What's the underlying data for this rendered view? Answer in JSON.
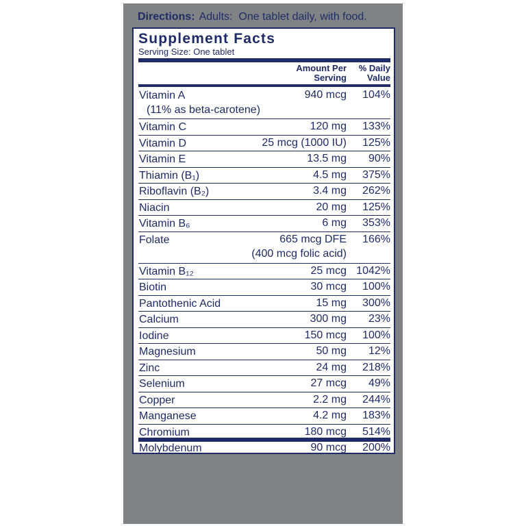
{
  "directions": {
    "label": "Directions:",
    "text": "Adults:  One tablet daily, with food."
  },
  "panel": {
    "title": "Supplement Facts",
    "serving_size": "Serving Size: One tablet",
    "header": {
      "amount": "Amount Per Serving",
      "daily_value": "% Daily Value"
    },
    "rows": [
      {
        "name": "Vitamin A",
        "note": "(11% as beta-carotene)",
        "amount": "940 mcg",
        "dv": "104%"
      },
      {
        "name": "Vitamin C",
        "amount": "120 mg",
        "dv": "133%"
      },
      {
        "name": "Vitamin D",
        "amount": "25 mcg (1000 IU)",
        "dv": "125%"
      },
      {
        "name": "Vitamin E",
        "amount": "13.5 mg",
        "dv": "90%"
      },
      {
        "name": "Thiamin (B₁)",
        "amount": "4.5 mg",
        "dv": "375%"
      },
      {
        "name": "Riboflavin (B₂)",
        "amount": "3.4 mg",
        "dv": "262%"
      },
      {
        "name": "Niacin",
        "amount": "20 mg",
        "dv": "125%"
      },
      {
        "name": "Vitamin B₆",
        "amount": "6 mg",
        "dv": "353%"
      },
      {
        "name": "Folate",
        "amount": "665 mcg DFE",
        "amount_note": "(400 mcg folic acid)",
        "dv": "166%"
      },
      {
        "name": "Vitamin B₁₂",
        "amount": "25 mcg",
        "dv": "1042%"
      },
      {
        "name": "Biotin",
        "amount": "30 mcg",
        "dv": "100%"
      },
      {
        "name": "Pantothenic Acid",
        "amount": "15 mg",
        "dv": "300%"
      },
      {
        "name": "Calcium",
        "amount": "300 mg",
        "dv": "23%"
      },
      {
        "name": "Iodine",
        "amount": "150 mcg",
        "dv": "100%"
      },
      {
        "name": "Magnesium",
        "amount": "50 mg",
        "dv": "12%"
      },
      {
        "name": "Zinc",
        "amount": "24 mg",
        "dv": "218%"
      },
      {
        "name": "Selenium",
        "amount": "27 mcg",
        "dv": "49%"
      },
      {
        "name": "Copper",
        "amount": "2.2 mg",
        "dv": "244%"
      },
      {
        "name": "Manganese",
        "amount": "4.2 mg",
        "dv": "183%"
      },
      {
        "name": "Chromium",
        "amount": "180 mcg",
        "dv": "514%"
      },
      {
        "name": "Molybdenum",
        "amount": "90 mcg",
        "dv": "200%"
      }
    ]
  }
}
